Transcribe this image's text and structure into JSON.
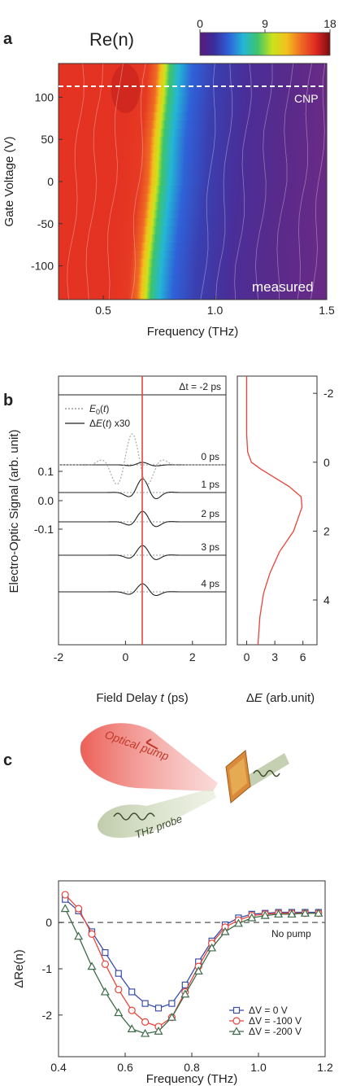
{
  "colors": {
    "cnp_line": "#ffffff",
    "marker_line": "#e8443a",
    "dE_curve": "#e8443a",
    "series_blue": "#3b4fa8",
    "series_red": "#e8443a",
    "series_green": "#3e6b4a"
  },
  "chart_data": [
    {
      "panel": "a",
      "type": "heatmap",
      "title": "Re(n)",
      "xlabel": "Frequency (THz)",
      "ylabel": "Gate Voltage (V)",
      "xlim": [
        0.3,
        1.5
      ],
      "ylim": [
        -140,
        140
      ],
      "xticks": [
        "0.5",
        "1.0",
        "1.5"
      ],
      "yticks": [
        "-100",
        "-50",
        "0",
        "50",
        "100"
      ],
      "colorbar": {
        "min": 0,
        "max": 18,
        "ticks": [
          "0",
          "9",
          "18"
        ],
        "colormap": [
          "#5a1a7c",
          "#3a2d9c",
          "#2f62d8",
          "#23b6d6",
          "#3ec46a",
          "#c9e31c",
          "#f2c11c",
          "#ef6a24",
          "#e02a22",
          "#7a0c10"
        ]
      },
      "cnp_voltage": 113,
      "cnp_label": "CNP",
      "annotation": "measured",
      "transition_freq_at_v": [
        [
          140,
          0.8
        ],
        [
          100,
          0.79
        ],
        [
          50,
          0.77
        ],
        [
          0,
          0.76
        ],
        [
          -50,
          0.74
        ],
        [
          -100,
          0.72
        ],
        [
          -140,
          0.71
        ]
      ]
    },
    {
      "panel": "b",
      "type": "line",
      "xlabel_parts": [
        "Field Delay ",
        "t",
        " (ps)"
      ],
      "ylabel": "Electro-Optic Signal (arb. unit)",
      "xlim": [
        -2,
        3
      ],
      "xticks": [
        "-2",
        "0",
        "2"
      ],
      "yticks": [
        "0.1",
        "0.0",
        "-0.1"
      ],
      "legend": [
        {
          "name": "E0(t)",
          "style": "dotted"
        },
        {
          "name": "ΔE(t) x30",
          "style": "solid"
        }
      ],
      "marker_time": 0.5,
      "traces": [
        {
          "label": "Δt = -2 ps",
          "delay": -2
        },
        {
          "label": "0 ps",
          "delay": 0
        },
        {
          "label": "1 ps",
          "delay": 1
        },
        {
          "label": "2 ps",
          "delay": 2
        },
        {
          "label": "3 ps",
          "delay": 3
        },
        {
          "label": "4 ps",
          "delay": 4
        }
      ]
    },
    {
      "panel": "b-right",
      "type": "line",
      "xlabel_parts": [
        "Δ",
        "E",
        " (arb.unit)"
      ],
      "xlim": [
        -1,
        7.5
      ],
      "xticks": [
        "0",
        "3",
        "6"
      ],
      "ylim": [
        -2.5,
        5.3
      ],
      "yticks": [
        "-2",
        "0",
        "2",
        "4"
      ],
      "x": [
        0.0,
        0.0,
        0.1,
        0.5,
        1.5,
        3.0,
        4.5,
        5.8,
        5.9,
        5.0,
        3.5,
        2.5,
        1.8,
        1.4,
        1.2
      ],
      "y": [
        -2.5,
        -0.8,
        -0.3,
        0.0,
        0.2,
        0.45,
        0.7,
        1.0,
        1.3,
        2.0,
        2.6,
        3.2,
        3.8,
        4.5,
        5.3
      ]
    },
    {
      "panel": "c",
      "type": "line",
      "xlabel": "Frequency (THz)",
      "ylabel": "ΔRe(n)",
      "xlim": [
        0.4,
        1.2
      ],
      "ylim": [
        -2.9,
        0.9
      ],
      "xticks": [
        "0.4",
        "0.6",
        "0.8",
        "1.0",
        "1.2"
      ],
      "yticks": [
        "0",
        "-1",
        "-2"
      ],
      "baseline_label": "No pump",
      "x": [
        0.42,
        0.46,
        0.5,
        0.54,
        0.58,
        0.62,
        0.66,
        0.7,
        0.74,
        0.78,
        0.82,
        0.86,
        0.9,
        0.94,
        0.98,
        1.02,
        1.06,
        1.1,
        1.14,
        1.18
      ],
      "series": [
        {
          "name": "ΔV = 0 V",
          "marker": "square",
          "color": "#3b4fa8",
          "values": [
            0.5,
            0.25,
            -0.2,
            -0.65,
            -1.1,
            -1.5,
            -1.75,
            -1.85,
            -1.75,
            -1.35,
            -0.85,
            -0.4,
            -0.05,
            0.1,
            0.18,
            0.2,
            0.22,
            0.22,
            0.22,
            0.22
          ]
        },
        {
          "name": "ΔV = -100 V",
          "marker": "circle",
          "color": "#e8443a",
          "values": [
            0.6,
            0.3,
            -0.25,
            -0.9,
            -1.45,
            -1.9,
            -2.15,
            -2.25,
            -2.05,
            -1.5,
            -0.95,
            -0.45,
            -0.1,
            0.05,
            0.15,
            0.18,
            0.2,
            0.2,
            0.2,
            0.2
          ]
        },
        {
          "name": "ΔV = -200 V",
          "marker": "triangle",
          "color": "#3e6b4a",
          "values": [
            0.3,
            -0.3,
            -0.95,
            -1.5,
            -1.95,
            -2.3,
            -2.4,
            -2.35,
            -2.05,
            -1.55,
            -1.05,
            -0.55,
            -0.2,
            -0.02,
            0.1,
            0.15,
            0.18,
            0.18,
            0.2,
            0.2
          ]
        }
      ]
    }
  ],
  "schematic": {
    "pump_label": "Optical pump",
    "probe_label": "THz probe"
  }
}
